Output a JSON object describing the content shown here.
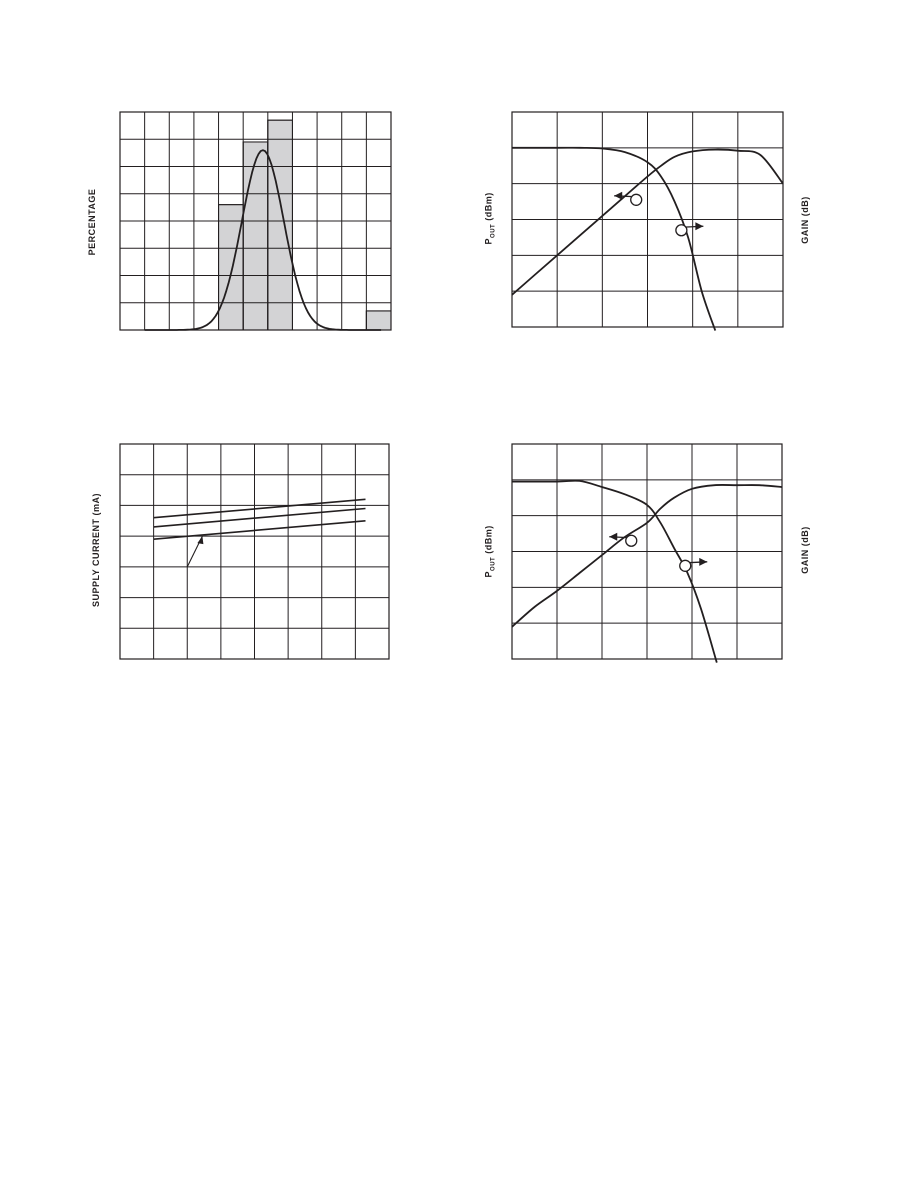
{
  "chart_data": [
    {
      "type": "bar",
      "ylabel": "PERCENTAGE",
      "xlabel": "",
      "title": "",
      "grid": true,
      "xlim": [
        0,
        11
      ],
      "ylim": [
        0,
        8
      ],
      "bars": [
        {
          "start": 4,
          "end": 5,
          "value": 4.6
        },
        {
          "start": 5,
          "end": 6,
          "value": 6.9
        },
        {
          "start": 6,
          "end": 7,
          "value": 7.7
        },
        {
          "start": 10,
          "end": 11,
          "value": 0.7
        }
      ],
      "fit_curve": {
        "mean": 5.8,
        "sigma": 0.85,
        "peak": 6.6
      }
    },
    {
      "type": "line",
      "ylabel": "P",
      "ylabel_sub": "OUT",
      "ylabel_suffix": " (dBm)",
      "y2label": "GAIN (dB)",
      "xlabel": "",
      "title": "",
      "grid": true,
      "xlim": [
        0,
        6
      ],
      "ylim": [
        0,
        6
      ],
      "series": [
        {
          "axis": "left",
          "x": [
            0,
            0.5,
            1,
            1.5,
            2,
            2.5,
            3,
            3.3,
            3.6,
            4,
            4.5,
            5,
            5.5,
            6
          ],
          "y": [
            0.9,
            1.45,
            2.0,
            2.55,
            3.1,
            3.65,
            4.2,
            4.5,
            4.75,
            4.9,
            4.95,
            4.92,
            4.8,
            4.0
          ]
        },
        {
          "axis": "right",
          "x": [
            0,
            1,
            1.5,
            2,
            2.5,
            3,
            3.3,
            3.6,
            3.9,
            4.2,
            4.5
          ],
          "y": [
            5.0,
            5.0,
            5.0,
            4.98,
            4.88,
            4.6,
            4.2,
            3.5,
            2.5,
            1.0,
            -0.1
          ]
        }
      ],
      "markers": [
        {
          "x": 2.75,
          "y": 3.55,
          "direction": "left"
        },
        {
          "x": 3.75,
          "y": 2.7,
          "direction": "right"
        }
      ]
    },
    {
      "type": "line",
      "ylabel": "SUPPLY CURRENT (mA)",
      "xlabel": "",
      "title": "",
      "grid": true,
      "xlim": [
        0,
        8
      ],
      "ylim": [
        0,
        7
      ],
      "series": [
        {
          "x": [
            1,
            7.3
          ],
          "y": [
            4.6,
            5.2
          ]
        },
        {
          "x": [
            1,
            7.3
          ],
          "y": [
            4.3,
            4.9
          ]
        },
        {
          "x": [
            1,
            7.3
          ],
          "y": [
            3.9,
            4.5
          ]
        }
      ],
      "annotations": [
        {
          "type": "leader",
          "from": [
            2,
            3.0
          ],
          "to": [
            2.45,
            4.0
          ]
        }
      ]
    },
    {
      "type": "line",
      "ylabel": "P",
      "ylabel_sub": "OUT",
      "ylabel_suffix": " (dBm)",
      "y2label": "GAIN (dB)",
      "xlabel": "",
      "title": "",
      "grid": true,
      "xlim": [
        0,
        6
      ],
      "ylim": [
        0,
        6
      ],
      "series": [
        {
          "axis": "left",
          "x": [
            0,
            0.5,
            1,
            1.5,
            2,
            2.5,
            3,
            3.3,
            3.6,
            4,
            4.5,
            5,
            5.5,
            6
          ],
          "y": [
            0.9,
            1.45,
            1.9,
            2.4,
            2.9,
            3.4,
            3.8,
            4.2,
            4.5,
            4.75,
            4.85,
            4.85,
            4.85,
            4.8
          ]
        },
        {
          "axis": "right",
          "x": [
            0,
            1,
            1.5,
            2,
            2.5,
            3,
            3.3,
            3.6,
            3.9,
            4.2,
            4.55
          ],
          "y": [
            4.95,
            4.95,
            4.97,
            4.8,
            4.6,
            4.3,
            3.8,
            3.1,
            2.4,
            1.4,
            -0.1
          ]
        }
      ],
      "markers": [
        {
          "x": 2.65,
          "y": 3.3,
          "direction": "left"
        },
        {
          "x": 3.85,
          "y": 2.6,
          "direction": "right"
        }
      ]
    }
  ]
}
